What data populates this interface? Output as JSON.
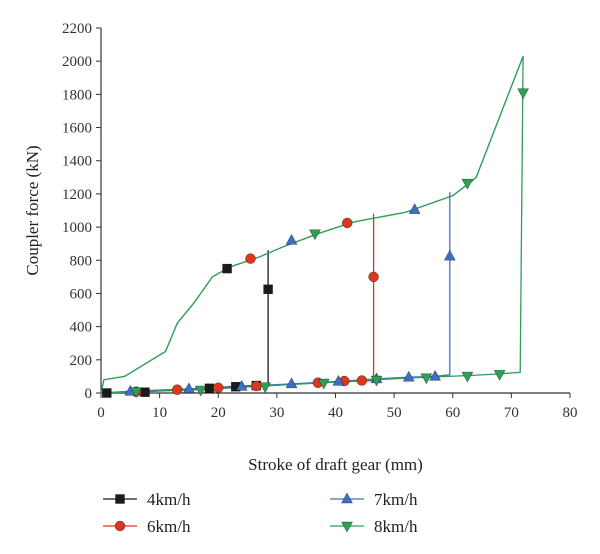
{
  "chart_data": {
    "type": "line",
    "xlabel": "Stroke of draft gear (mm)",
    "ylabel": "Coupler force (kN)",
    "xlim": [
      0,
      80
    ],
    "ylim": [
      0,
      2200
    ],
    "x_ticks": [
      "0",
      "10",
      "20",
      "30",
      "40",
      "50",
      "60",
      "70",
      "80"
    ],
    "y_ticks": [
      "0",
      "200",
      "400",
      "600",
      "800",
      "1000",
      "1200",
      "1400",
      "1600",
      "1800",
      "2000",
      "2200"
    ],
    "grid": false,
    "legend_position": "bottom",
    "loading_curve": [
      [
        0,
        0
      ],
      [
        0.5,
        80
      ],
      [
        4,
        100
      ],
      [
        11,
        250
      ],
      [
        13,
        420
      ],
      [
        16,
        550
      ],
      [
        19,
        700
      ],
      [
        22,
        760
      ],
      [
        27,
        820
      ],
      [
        31,
        880
      ],
      [
        37,
        960
      ],
      [
        43,
        1030
      ],
      [
        52,
        1090
      ],
      [
        60,
        1190
      ],
      [
        63,
        1270
      ],
      [
        64,
        1300
      ],
      [
        72,
        2030
      ]
    ],
    "series": [
      {
        "name": "4km/h",
        "color": "#1a1a1a",
        "marker": "square",
        "unloading": [
          [
            0,
            0
          ],
          [
            1,
            0
          ],
          [
            7.5,
            8
          ],
          [
            13,
            20
          ],
          [
            23,
            40
          ],
          [
            28.5,
            50
          ],
          [
            28.5,
            860
          ]
        ],
        "markers": [
          [
            1,
            0
          ],
          [
            7.5,
            5
          ],
          [
            18.5,
            28
          ],
          [
            23,
            38
          ],
          [
            26.5,
            45
          ],
          [
            21.5,
            750
          ],
          [
            28.5,
            625
          ]
        ]
      },
      {
        "name": "6km/h",
        "color": "#d9381e",
        "marker": "circle",
        "unloading": [
          [
            0,
            0
          ],
          [
            6,
            10
          ],
          [
            13,
            22
          ],
          [
            20,
            33
          ],
          [
            26.5,
            42
          ],
          [
            32,
            52
          ],
          [
            37,
            62
          ],
          [
            46.5,
            75
          ],
          [
            46.5,
            1080
          ]
        ],
        "markers": [
          [
            6,
            8
          ],
          [
            13,
            20
          ],
          [
            20,
            32
          ],
          [
            26.5,
            42
          ],
          [
            37,
            62
          ],
          [
            41.5,
            72
          ],
          [
            44.5,
            75
          ],
          [
            25.5,
            810
          ],
          [
            42,
            1025
          ],
          [
            46.5,
            700
          ]
        ]
      },
      {
        "name": "7km/h",
        "color": "#3f6fc4",
        "marker": "triangle-up",
        "unloading": [
          [
            0,
            0
          ],
          [
            5,
            10
          ],
          [
            15,
            25
          ],
          [
            24,
            40
          ],
          [
            32.5,
            55
          ],
          [
            40.5,
            70
          ],
          [
            47,
            85
          ],
          [
            52.5,
            95
          ],
          [
            57,
            100
          ],
          [
            59.5,
            110
          ],
          [
            59.5,
            1210
          ]
        ],
        "markers": [
          [
            5,
            10
          ],
          [
            15,
            25
          ],
          [
            24,
            40
          ],
          [
            32.5,
            55
          ],
          [
            40.5,
            70
          ],
          [
            47,
            85
          ],
          [
            52.5,
            95
          ],
          [
            57,
            100
          ],
          [
            32.5,
            920
          ],
          [
            53.5,
            1105
          ],
          [
            59.5,
            825
          ]
        ]
      },
      {
        "name": "8km/h",
        "color": "#2f9e57",
        "marker": "triangle-down",
        "unloading": [
          [
            0,
            0
          ],
          [
            17,
            20
          ],
          [
            28,
            42
          ],
          [
            38,
            62
          ],
          [
            47,
            80
          ],
          [
            55.5,
            95
          ],
          [
            62.5,
            105
          ],
          [
            68,
            115
          ],
          [
            71.5,
            125
          ],
          [
            72,
            2030
          ]
        ],
        "markers": [
          [
            6,
            8
          ],
          [
            17,
            18
          ],
          [
            28,
            38
          ],
          [
            38,
            60
          ],
          [
            47,
            78
          ],
          [
            55.5,
            92
          ],
          [
            62.5,
            102
          ],
          [
            68,
            112
          ],
          [
            36.5,
            960
          ],
          [
            62.5,
            1265
          ],
          [
            72,
            1810
          ]
        ]
      }
    ]
  }
}
